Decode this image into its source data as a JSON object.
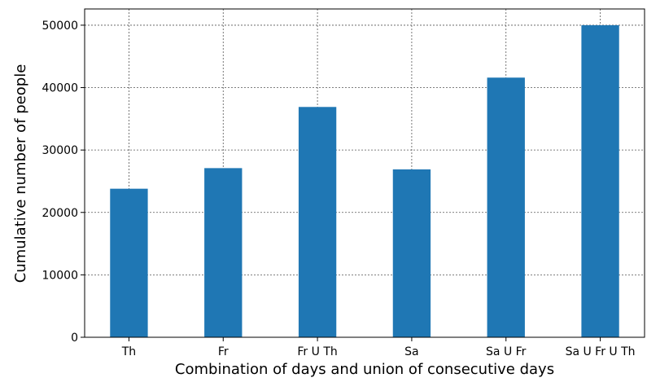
{
  "chart_data": {
    "type": "bar",
    "x_label": "Combination of days and union of consecutive days",
    "y_label": "Cumulative number of people",
    "categories": [
      "Th",
      "Fr",
      "Fr U Th",
      "Sa",
      "Sa U Fr",
      "Sa U Fr U Th"
    ],
    "values": [
      23800,
      27100,
      36900,
      26900,
      41600,
      50000
    ],
    "color": "#1f77b4",
    "ylim": [
      0,
      52600
    ],
    "yticks": [
      0,
      10000,
      20000,
      30000,
      40000,
      50000
    ],
    "grid": true
  }
}
